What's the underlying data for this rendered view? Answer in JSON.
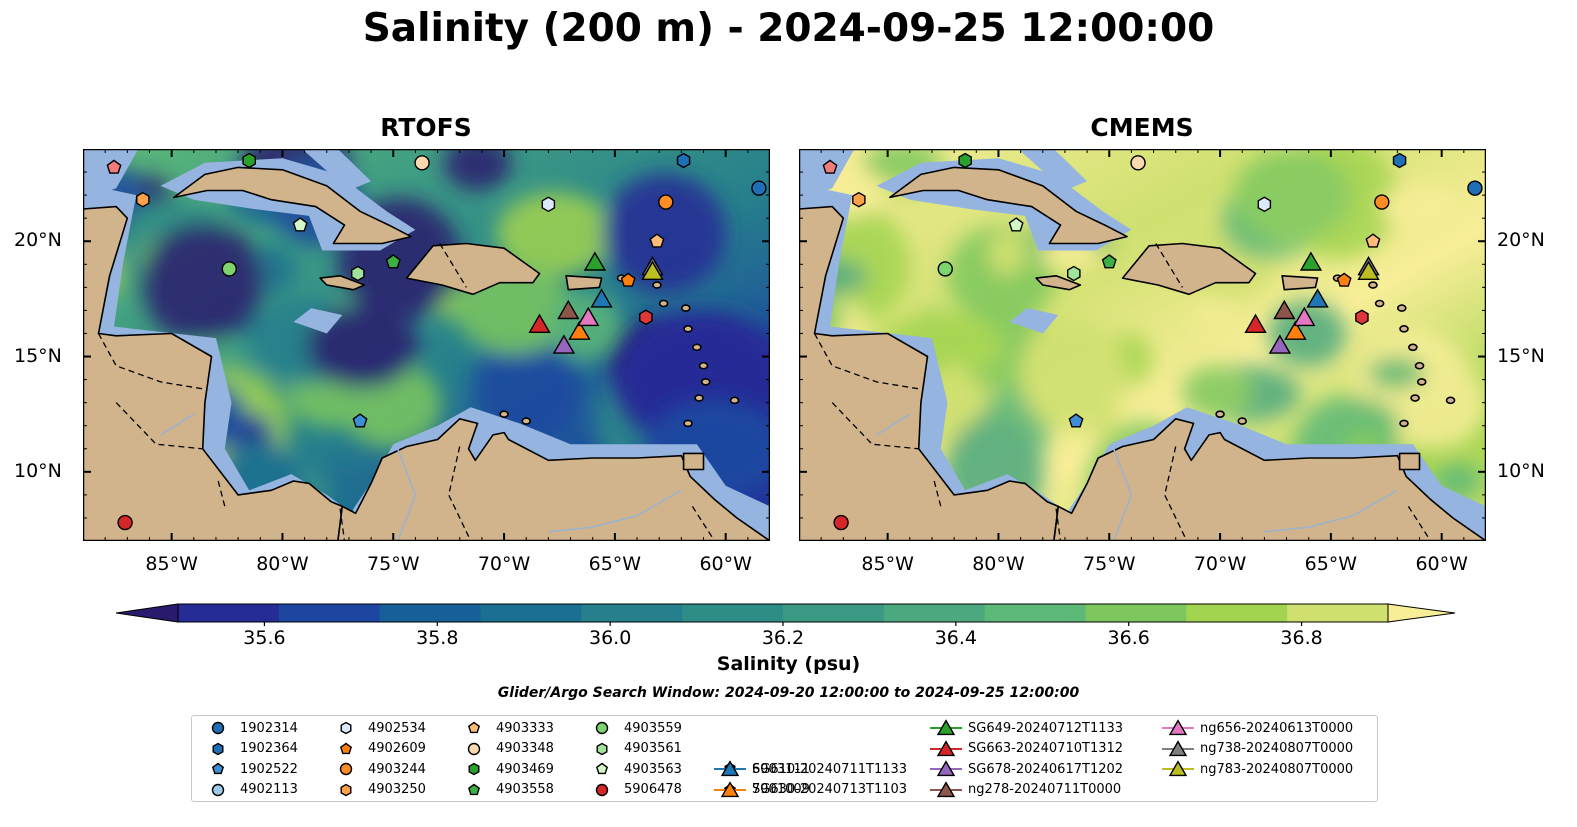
{
  "title": "Salinity (200 m) - 2024-09-25 12:00:00",
  "panels": [
    {
      "title": "RTOFS",
      "style": "rtofs"
    },
    {
      "title": "CMEMS",
      "style": "cmems"
    }
  ],
  "map_extent": {
    "lon": [
      -89,
      -58
    ],
    "lat": [
      7,
      24
    ]
  },
  "lat_ticks": [
    {
      "value": 10,
      "label": "10°N"
    },
    {
      "value": 15,
      "label": "15°N"
    },
    {
      "value": 20,
      "label": "20°N"
    }
  ],
  "lon_ticks": [
    {
      "value": -85,
      "label": "85°W"
    },
    {
      "value": -80,
      "label": "80°W"
    },
    {
      "value": -75,
      "label": "75°W"
    },
    {
      "value": -70,
      "label": "70°W"
    },
    {
      "value": -65,
      "label": "65°W"
    },
    {
      "value": -60,
      "label": "60°W"
    }
  ],
  "colors": {
    "land": "#d2b48c",
    "shelf": "#95b4e0",
    "coast": "#000000"
  },
  "colorbar": {
    "label": "Salinity (psu)",
    "min": 35.5,
    "max": 36.9,
    "ticks": [
      "35.6",
      "35.8",
      "36.0",
      "36.2",
      "36.4",
      "36.6",
      "36.8"
    ],
    "colors": [
      "#2a1a6e",
      "#262c96",
      "#1c46a0",
      "#165f98",
      "#1a7090",
      "#267f8c",
      "#2f8d88",
      "#3c9a84",
      "#4ca87e",
      "#5db978",
      "#7dc75e",
      "#a2d450",
      "#cfe070",
      "#f8ee98"
    ]
  },
  "search_window": "Glider/Argo Search Window: 2024-09-20 12:00:00 to 2024-09-25 12:00:00",
  "legend": [
    {
      "label": "1902314",
      "shape": "circle",
      "color": "#1f6fb6"
    },
    {
      "label": "1902364",
      "shape": "hexagon",
      "color": "#1f6fb6"
    },
    {
      "label": "1902522",
      "shape": "pentagon",
      "color": "#3d8ed6"
    },
    {
      "label": "4902113",
      "shape": "circle",
      "color": "#9ecae9"
    },
    {
      "label": "4902534",
      "shape": "hexagon",
      "color": "#dbeafb"
    },
    {
      "label": "4902609",
      "shape": "pentagon",
      "color": "#ff7f0e"
    },
    {
      "label": "4903244",
      "shape": "circle",
      "color": "#ff8c25"
    },
    {
      "label": "4903250",
      "shape": "hexagon",
      "color": "#ffa04a"
    },
    {
      "label": "4903333",
      "shape": "pentagon",
      "color": "#ffbb78"
    },
    {
      "label": "4903348",
      "shape": "circle",
      "color": "#fdd9b0"
    },
    {
      "label": "4903469",
      "shape": "hexagon",
      "color": "#2ca02c"
    },
    {
      "label": "4903558",
      "shape": "pentagon",
      "color": "#3cb043"
    },
    {
      "label": "4903559",
      "shape": "circle",
      "color": "#7dd36c"
    },
    {
      "label": "4903561",
      "shape": "hexagon",
      "color": "#a0e39a"
    },
    {
      "label": "4903563",
      "shape": "pentagon",
      "color": "#d4f7c8"
    },
    {
      "label": "5906478",
      "shape": "circle",
      "color": "#d62728"
    },
    {
      "label": "6903111",
      "shape": "hexagon",
      "color": "#e03838"
    },
    {
      "label": "7901009",
      "shape": "pentagon",
      "color": "#f07c7c"
    },
    {
      "label": "SG610-20240711T1133",
      "shape": "triangle",
      "color": "#1f77b4",
      "line": true
    },
    {
      "label": "SG630-20240713T1103",
      "shape": "triangle",
      "color": "#ff7f0e",
      "line": true
    },
    {
      "label": "SG649-20240712T1133",
      "shape": "triangle",
      "color": "#2ca02c",
      "line": true
    },
    {
      "label": "SG663-20240710T1312",
      "shape": "triangle",
      "color": "#d62728",
      "line": true
    },
    {
      "label": "SG678-20240617T1202",
      "shape": "triangle",
      "color": "#9467bd",
      "line": true
    },
    {
      "label": "ng278-20240711T0000",
      "shape": "triangle",
      "color": "#8c564b",
      "line": true
    },
    {
      "label": "ng656-20240613T0000",
      "shape": "triangle",
      "color": "#e377c2",
      "line": true
    },
    {
      "label": "ng738-20240807T0000",
      "shape": "triangle",
      "color": "#7f7f7f",
      "line": true
    },
    {
      "label": "ng783-20240807T0000",
      "shape": "triangle",
      "color": "#bcbd22",
      "line": true
    }
  ],
  "platforms": [
    {
      "id": "1902314",
      "lon": -58.5,
      "lat": 22.3
    },
    {
      "id": "1902364",
      "lon": -61.9,
      "lat": 23.5
    },
    {
      "id": "1902522",
      "lon": -76.5,
      "lat": 12.2
    },
    {
      "id": "4902534",
      "lon": -68.0,
      "lat": 21.6
    },
    {
      "id": "4902609",
      "lon": -64.4,
      "lat": 18.3
    },
    {
      "id": "4903244",
      "lon": -62.7,
      "lat": 21.7
    },
    {
      "id": "4903250",
      "lon": -86.3,
      "lat": 21.8
    },
    {
      "id": "4903333",
      "lon": -63.1,
      "lat": 20.0
    },
    {
      "id": "4903348",
      "lon": -73.7,
      "lat": 23.4
    },
    {
      "id": "4903469",
      "lon": -81.5,
      "lat": 23.5
    },
    {
      "id": "4903558",
      "lon": -75.0,
      "lat": 19.1
    },
    {
      "id": "4903559",
      "lon": -82.4,
      "lat": 18.8
    },
    {
      "id": "4903561",
      "lon": -76.6,
      "lat": 18.6
    },
    {
      "id": "4903563",
      "lon": -79.2,
      "lat": 20.7
    },
    {
      "id": "5906478",
      "lon": -87.1,
      "lat": 7.8
    },
    {
      "id": "6903111",
      "lon": -63.6,
      "lat": 16.7
    },
    {
      "id": "7901009",
      "lon": -87.6,
      "lat": 23.2
    },
    {
      "id": "SG610-20240711T1133",
      "lon": -65.6,
      "lat": 17.5
    },
    {
      "id": "SG630-20240713T1103",
      "lon": -66.6,
      "lat": 16.1
    },
    {
      "id": "SG649-20240712T1133",
      "lon": -65.9,
      "lat": 19.1
    },
    {
      "id": "SG663-20240710T1312",
      "lon": -68.4,
      "lat": 16.4
    },
    {
      "id": "SG678-20240617T1202",
      "lon": -67.3,
      "lat": 15.5
    },
    {
      "id": "ng278-20240711T0000",
      "lon": -67.1,
      "lat": 17.0
    },
    {
      "id": "ng656-20240613T0000",
      "lon": -66.2,
      "lat": 16.7
    },
    {
      "id": "ng738-20240807T0000",
      "lon": -63.3,
      "lat": 18.9
    },
    {
      "id": "ng783-20240807T0000",
      "lon": -63.3,
      "lat": 18.7
    }
  ]
}
